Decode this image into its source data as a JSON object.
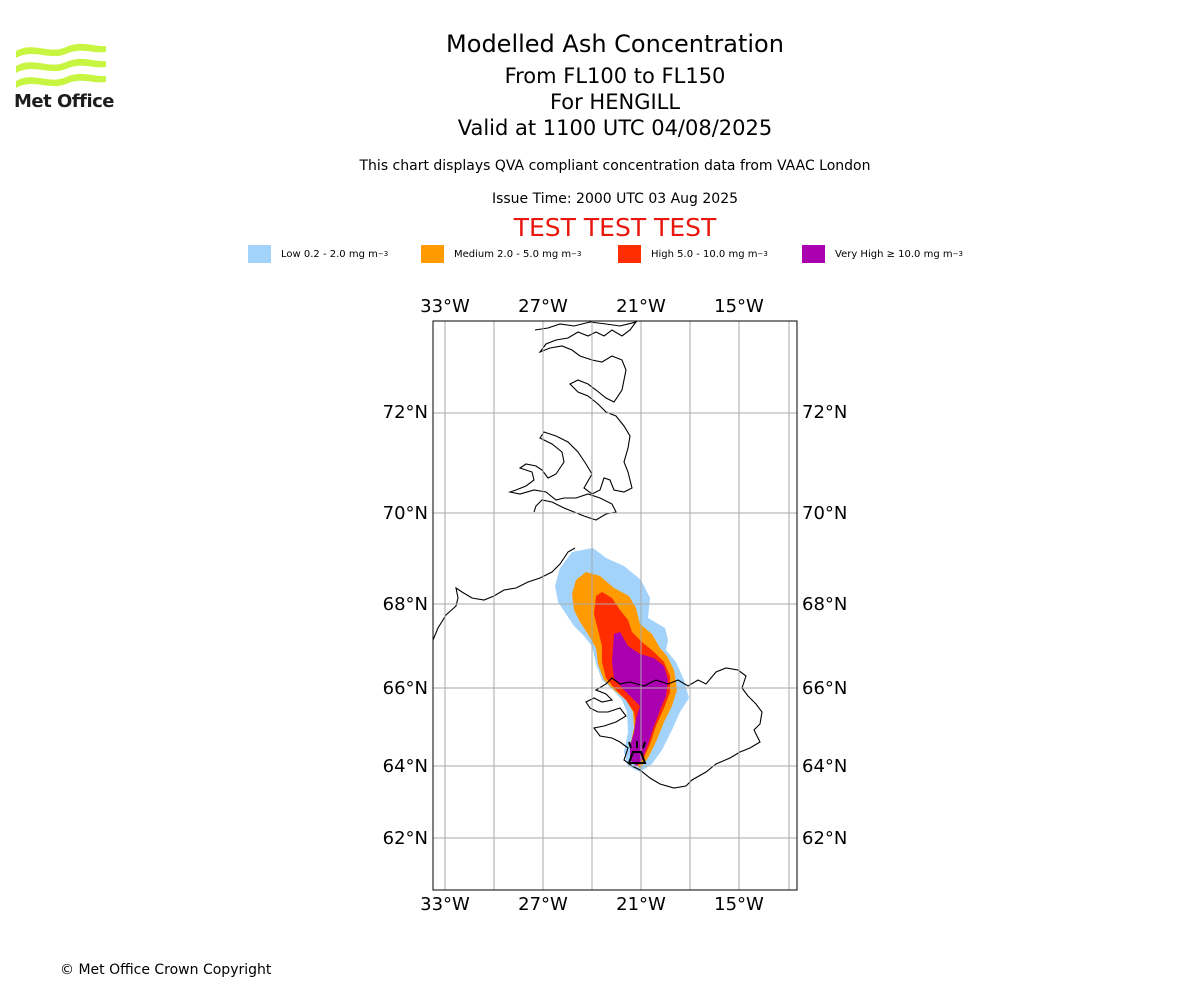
{
  "logo": {
    "text": "Met Office",
    "color": "#c8f542"
  },
  "titles": {
    "main": "Modelled Ash Concentration",
    "levels": "From FL100 to FL150",
    "volcano": "For HENGILL",
    "valid": "Valid at 1100 UTC 04/08/2025",
    "description": "This chart displays QVA compliant concentration data from VAAC London",
    "issue": "Issue Time: 2000 UTC 03 Aug 2025",
    "test": "TEST TEST TEST"
  },
  "legend": [
    {
      "label": "Low 0.2 - 2.0 mg m",
      "sup": "−3",
      "color": "#a3d3fa"
    },
    {
      "label": "Medium 2.0 - 5.0 mg m",
      "sup": "−3",
      "color": "#ff9b00"
    },
    {
      "label": "High 5.0 - 10.0 mg m",
      "sup": "−3",
      "color": "#ff2d00"
    },
    {
      "label": "Very High  ≥  10.0 mg m",
      "sup": "−3",
      "color": "#aa00b0"
    }
  ],
  "map": {
    "lon_ticks": [
      "33°W",
      "27°W",
      "21°W",
      "15°W"
    ],
    "lat_ticks": [
      "72°N",
      "70°N",
      "68°N",
      "66°N",
      "64°N",
      "62°N"
    ],
    "volcano_symbol": "volcano-icon"
  },
  "footer": {
    "copyright": "© Met Office Crown Copyright"
  }
}
